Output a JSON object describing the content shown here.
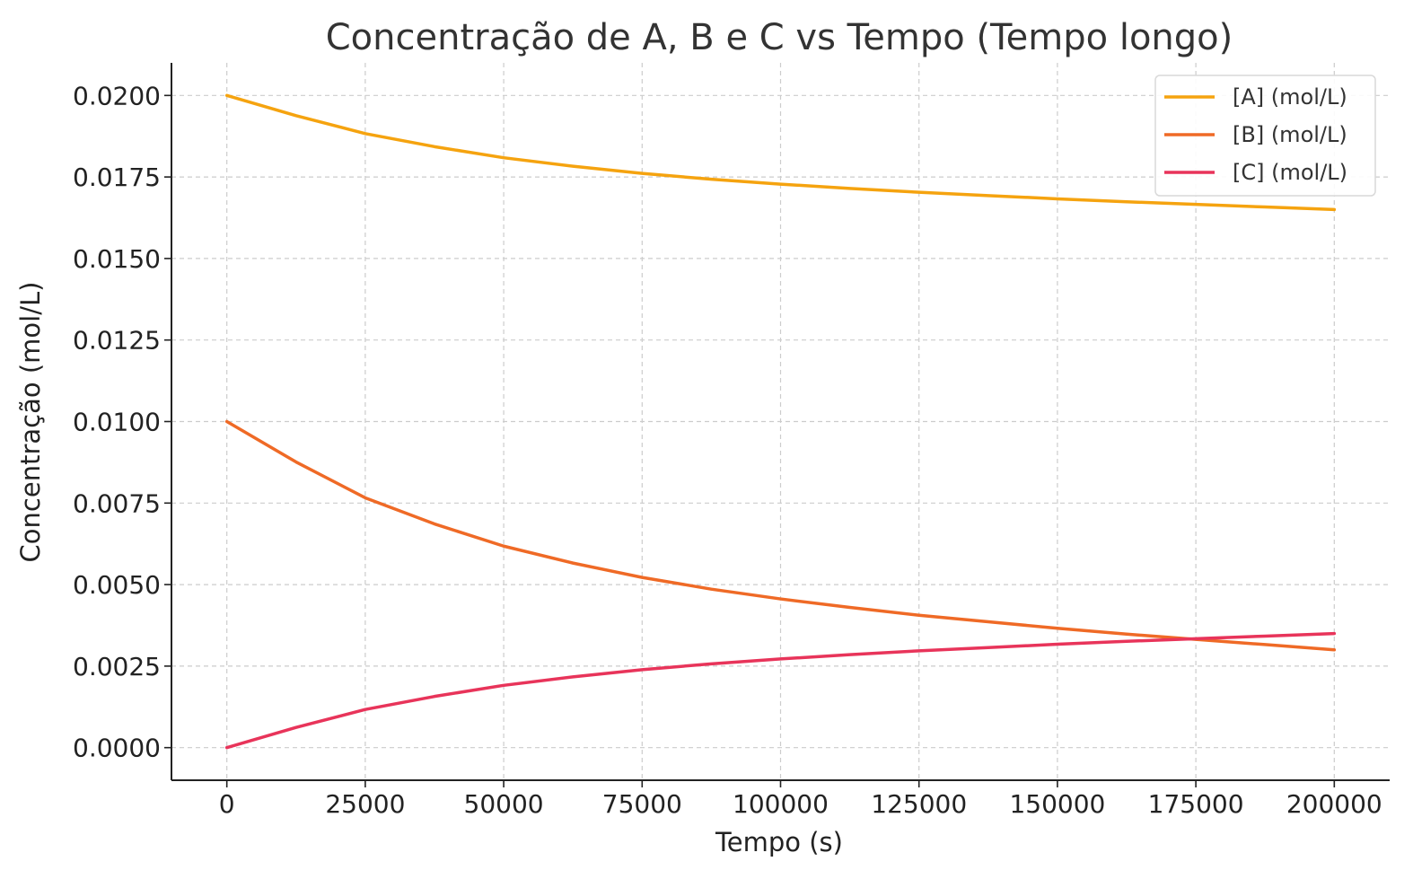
{
  "chart_data": {
    "type": "line",
    "title": "Concentração de A, B e C vs Tempo (Tempo longo)",
    "xlabel": "Tempo (s)",
    "ylabel": "Concentração (mol/L)",
    "xlim": [
      -10000,
      210000
    ],
    "ylim": [
      -0.001,
      0.021
    ],
    "xticks": [
      0,
      25000,
      50000,
      75000,
      100000,
      125000,
      150000,
      175000,
      200000
    ],
    "xtick_labels": [
      "0",
      "25000",
      "50000",
      "75000",
      "100000",
      "125000",
      "150000",
      "175000",
      "200000"
    ],
    "yticks": [
      0,
      0.0025,
      0.005,
      0.0075,
      0.01,
      0.0125,
      0.015,
      0.0175,
      0.02
    ],
    "ytick_labels": [
      "0.0000",
      "0.0025",
      "0.0050",
      "0.0075",
      "0.0100",
      "0.0125",
      "0.0150",
      "0.0175",
      "0.0200"
    ],
    "grid": true,
    "legend_position": "top-right",
    "x": [
      0,
      12500,
      25000,
      37500,
      50000,
      62500,
      75000,
      87500,
      100000,
      112500,
      125000,
      137500,
      150000,
      162500,
      175000,
      187500,
      200000
    ],
    "series": [
      {
        "name": "[A] (mol/L)",
        "color": "#f5a30f",
        "values": [
          0.02,
          0.01938,
          0.01883,
          0.01843,
          0.01809,
          0.01783,
          0.01761,
          0.01743,
          0.01728,
          0.01715,
          0.01703,
          0.01693,
          0.01683,
          0.01674,
          0.01666,
          0.01658,
          0.0165
        ]
      },
      {
        "name": "[B] (mol/L)",
        "color": "#ef6a26",
        "values": [
          0.01,
          0.00876,
          0.00766,
          0.00686,
          0.00618,
          0.00566,
          0.00522,
          0.00486,
          0.00456,
          0.0043,
          0.00406,
          0.00386,
          0.00366,
          0.00348,
          0.00332,
          0.00316,
          0.003
        ]
      },
      {
        "name": "[C] (mol/L)",
        "color": "#e8345a",
        "values": [
          0.0,
          0.00062,
          0.00117,
          0.00157,
          0.00191,
          0.00217,
          0.00239,
          0.00257,
          0.00272,
          0.00285,
          0.00297,
          0.00307,
          0.00317,
          0.00326,
          0.00334,
          0.00342,
          0.0035
        ]
      }
    ]
  }
}
